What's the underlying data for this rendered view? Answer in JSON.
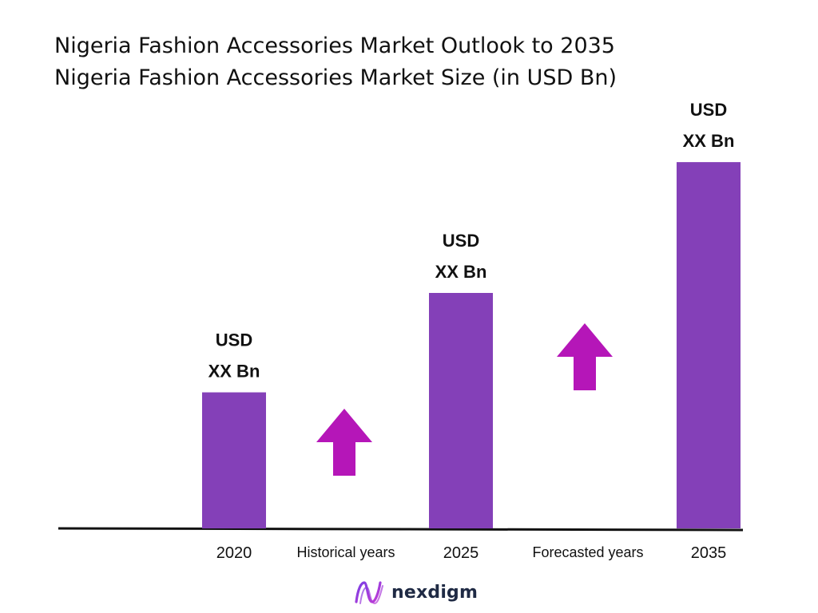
{
  "title_line1": "Nigeria Fashion Accessories Market Outlook to 2035",
  "title_line2": "Nigeria Fashion Accessories Market Size (in USD Bn)",
  "colors": {
    "bar": "#8440b8",
    "arrow": "#b516b8",
    "axis": "#111111",
    "text": "#111111",
    "brand_text": "#1f2a44"
  },
  "chart_data": {
    "type": "bar",
    "categories": [
      "2020",
      "2025",
      "2035"
    ],
    "values": [
      26,
      45,
      70
    ],
    "value_labels": [
      [
        "USD",
        "XX Bn"
      ],
      [
        "USD",
        "XX Bn"
      ],
      [
        "USD",
        "XX Bn"
      ]
    ],
    "period_labels": [
      "Historical years",
      "Forecasted years"
    ],
    "period_arrows": [
      "up-arrow",
      "up-arrow"
    ],
    "ylim": [
      0,
      72
    ],
    "grid": false,
    "legend": "none"
  },
  "brand": {
    "name": "nexdigm",
    "icon": "nexdigm-logo-icon"
  }
}
